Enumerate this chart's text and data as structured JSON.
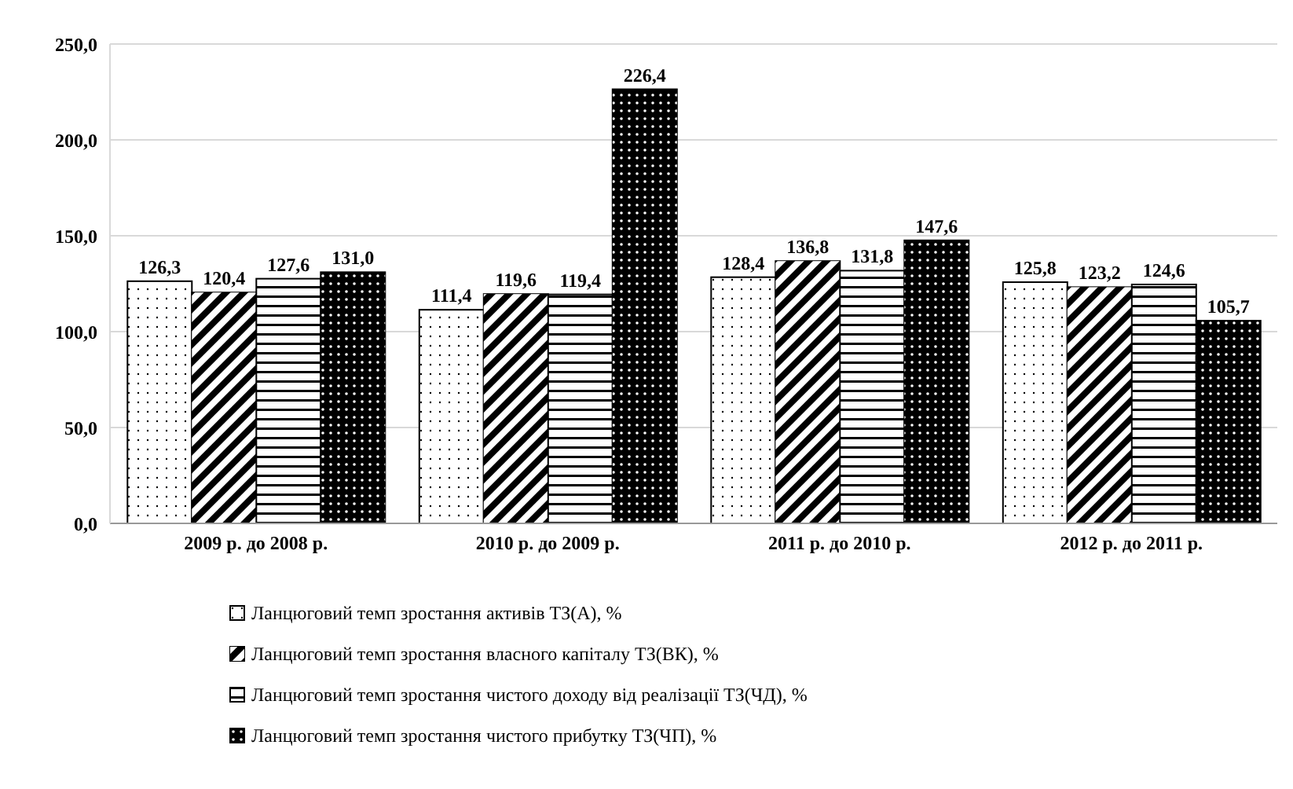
{
  "chart_data": {
    "type": "bar",
    "categories": [
      "2009 р. до 2008 р.",
      "2010 р. до 2009 р.",
      "2011 р. до 2010 р.",
      "2012 р. до 2011 р."
    ],
    "series": [
      {
        "name": "Ланцюговий темп зростання активів ТЗ(А), %",
        "color": "#ffffff",
        "values": [
          126.3,
          111.4,
          128.4,
          125.8
        ],
        "value_labels": [
          "126,3",
          "111,4",
          "128,4",
          "125,8"
        ]
      },
      {
        "name": "Ланцюговий темп зростання власного капіталу ТЗ(ВК), %",
        "color": "#000000",
        "values": [
          120.4,
          119.6,
          136.8,
          123.2
        ],
        "value_labels": [
          "120,4",
          "119,6",
          "136,8",
          "123,2"
        ]
      },
      {
        "name": "Ланцюговий темп зростання чистого доходу від реалізації ТЗ(ЧД), %",
        "color": "#ffffff",
        "values": [
          127.6,
          119.4,
          131.8,
          124.6
        ],
        "value_labels": [
          "127,6",
          "119,4",
          "131,8",
          "124,6"
        ]
      },
      {
        "name": "Ланцюговий темп зростання чистого прибутку ТЗ(ЧП), %",
        "color": "#000000",
        "values": [
          131.0,
          226.4,
          147.6,
          105.7
        ],
        "value_labels": [
          "131,0",
          "226,4",
          "147,6",
          "105,7"
        ]
      }
    ],
    "ylim": [
      0,
      250
    ],
    "yticks": [
      {
        "value": 0,
        "label": "0,0"
      },
      {
        "value": 50,
        "label": "50,0"
      },
      {
        "value": 100,
        "label": "100,0"
      },
      {
        "value": 150,
        "label": "150,0"
      },
      {
        "value": 200,
        "label": "200,0"
      },
      {
        "value": 250,
        "label": "250,0"
      }
    ],
    "grid": "y",
    "legend": "bottom"
  }
}
